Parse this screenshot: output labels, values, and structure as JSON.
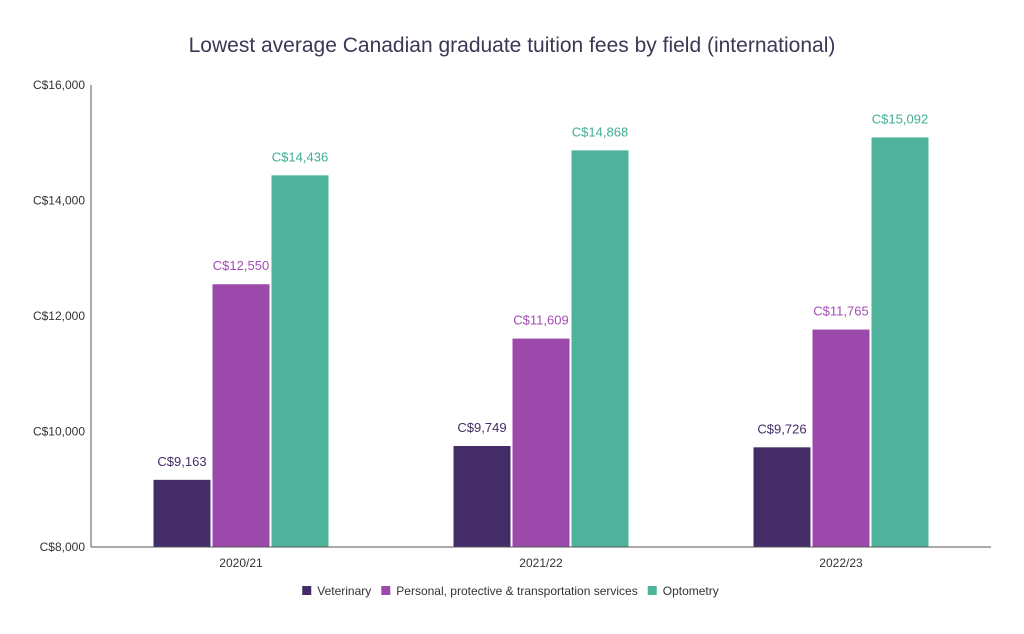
{
  "chart_data": {
    "type": "bar",
    "title": "Lowest average Canadian graduate tuition fees by field (international)",
    "xlabel": "",
    "ylabel": "",
    "categories": [
      "2020/21",
      "2021/22",
      "2022/23"
    ],
    "ylim": [
      8000,
      16000
    ],
    "yticks": [
      8000,
      10000,
      12000,
      14000,
      16000
    ],
    "ytick_labels": [
      "C$8,000",
      "C$10,000",
      "C$12,000",
      "C$14,000",
      "C$16,000"
    ],
    "grid": false,
    "legend_position": "bottom",
    "series": [
      {
        "name": "Veterinary",
        "color": "#432c67",
        "label_color": "#432c67",
        "values": [
          9163,
          9749,
          9726
        ],
        "labels": [
          "C$9,163",
          "C$9,749",
          "C$9,726"
        ]
      },
      {
        "name": "Personal, protective & transportation services",
        "color": "#9b4aab",
        "label_color": "#a34db5",
        "values": [
          12550,
          11609,
          11765
        ],
        "labels": [
          "C$12,550",
          "C$11,609",
          "C$11,765"
        ]
      },
      {
        "name": "Optometry",
        "color": "#4fb39c",
        "label_color": "#3fae94",
        "values": [
          14436,
          14868,
          15092
        ],
        "labels": [
          "C$14,436",
          "C$14,868",
          "C$15,092"
        ]
      }
    ]
  }
}
